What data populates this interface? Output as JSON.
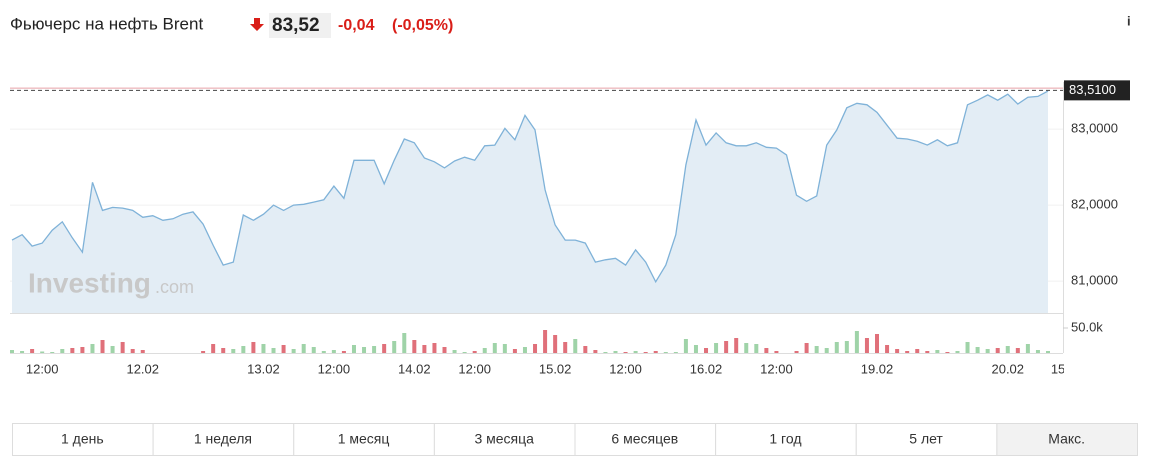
{
  "header": {
    "title": "Фьючерс на нефть Brent",
    "price": "83,52",
    "change": "-0,04",
    "change_percent": "(-0,05%)",
    "info": "i"
  },
  "watermark": {
    "brand": "Investing",
    "suffix": ".com"
  },
  "chart_data": {
    "type": "line",
    "categories": [
      null,
      null,
      null,
      "12:00",
      null,
      null,
      null,
      null,
      null,
      null,
      null,
      null,
      null,
      "12.02",
      null,
      null,
      null,
      null,
      null,
      null,
      null,
      null,
      null,
      null,
      null,
      "13.02",
      null,
      null,
      null,
      null,
      null,
      null,
      "12:00",
      null,
      null,
      null,
      null,
      null,
      null,
      null,
      "14.02",
      null,
      null,
      null,
      null,
      null,
      "12:00",
      null,
      null,
      null,
      null,
      null,
      null,
      null,
      "15.02",
      null,
      null,
      null,
      null,
      null,
      null,
      "12:00",
      null,
      null,
      null,
      null,
      null,
      null,
      null,
      "16.02",
      null,
      null,
      null,
      null,
      null,
      null,
      "12:00",
      null,
      null,
      null,
      null,
      null,
      null,
      null,
      null,
      null,
      "19.02",
      null,
      null,
      null,
      null,
      null,
      null,
      null,
      null,
      null,
      null,
      null,
      null,
      "20.02",
      null,
      null,
      null,
      null,
      "15"
    ],
    "series": [
      {
        "name": "Цена",
        "color": "#7fb2d8",
        "fill": "#e3edf5",
        "values": [
          81.54,
          81.61,
          81.46,
          81.5,
          81.67,
          81.78,
          81.57,
          81.38,
          82.3,
          81.93,
          81.97,
          81.96,
          81.93,
          81.84,
          81.86,
          81.8,
          81.82,
          81.88,
          81.91,
          81.75,
          81.47,
          81.21,
          81.25,
          81.87,
          81.8,
          81.88,
          82.0,
          81.93,
          82.0,
          82.01,
          82.04,
          82.07,
          82.25,
          82.09,
          82.59,
          82.59,
          82.59,
          82.28,
          82.59,
          82.87,
          82.82,
          82.62,
          82.57,
          82.49,
          82.58,
          82.63,
          82.59,
          82.78,
          82.79,
          83.01,
          82.86,
          83.18,
          82.99,
          82.2,
          81.74,
          81.54,
          81.54,
          81.5,
          81.25,
          81.28,
          81.3,
          81.21,
          81.41,
          81.25,
          80.99,
          81.21,
          81.61,
          82.53,
          83.12,
          82.79,
          82.95,
          82.82,
          82.78,
          82.78,
          82.82,
          82.76,
          82.75,
          82.66,
          82.13,
          82.05,
          82.12,
          82.79,
          82.99,
          83.28,
          83.34,
          83.32,
          83.22,
          83.05,
          82.88,
          82.87,
          82.84,
          82.79,
          82.86,
          82.78,
          82.82,
          83.32,
          83.38,
          83.45,
          83.38,
          83.46,
          83.33,
          83.42,
          83.43,
          83.5,
          null
        ]
      },
      {
        "name": "Объём",
        "up_color": "#9fd3a8",
        "down_color": "#e0707a",
        "values": [
          6000,
          4000,
          8000,
          3000,
          2000,
          8000,
          10000,
          12000,
          18000,
          26000,
          14000,
          22000,
          8000,
          6000,
          0,
          0,
          0,
          0,
          0,
          4000,
          18000,
          10000,
          8000,
          14000,
          22000,
          18000,
          10000,
          16000,
          8000,
          18000,
          12000,
          4000,
          6000,
          4000,
          16000,
          12000,
          14000,
          18000,
          24000,
          40000,
          26000,
          16000,
          20000,
          12000,
          6000,
          2000,
          4000,
          10000,
          20000,
          18000,
          8000,
          12000,
          18000,
          46000,
          36000,
          22000,
          28000,
          14000,
          6000,
          2000,
          4000,
          2000,
          4000,
          2000,
          4000,
          2000,
          2000,
          28000,
          16000,
          10000,
          20000,
          24000,
          30000,
          20000,
          18000,
          10000,
          4000,
          0,
          4000,
          20000,
          14000,
          10000,
          22000,
          24000,
          44000,
          30000,
          38000,
          16000,
          8000,
          4000,
          8000,
          4000,
          6000,
          2000,
          4000,
          22000,
          12000,
          8000,
          10000,
          14000,
          10000,
          18000,
          6000,
          4000,
          null
        ]
      }
    ],
    "ylim": [
      80.58,
      83.62
    ],
    "yticks": [
      {
        "value": 81,
        "label": "81,0000"
      },
      {
        "value": 82,
        "label": "82,0000"
      },
      {
        "value": 83,
        "label": "83,0000"
      }
    ],
    "y2lim": [
      0,
      76000
    ],
    "y2ticks": [
      {
        "value": 50000,
        "label": "50.0k"
      }
    ],
    "last_price": {
      "value": 83.51,
      "label": "83,5100"
    },
    "reference_line": 83.54,
    "grid": true
  },
  "periods": [
    "1 день",
    "1 неделя",
    "1 месяц",
    "3 месяца",
    "6 месяцев",
    "1 год",
    "5 лет",
    "Макс."
  ]
}
